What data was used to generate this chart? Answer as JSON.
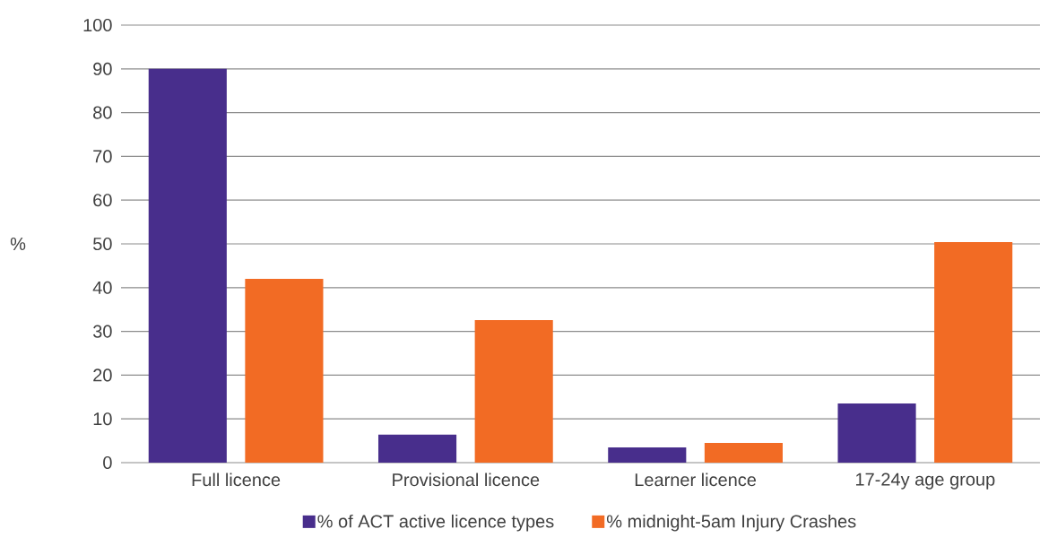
{
  "chart_data": {
    "type": "bar",
    "ylabel": "%",
    "categories": [
      "Full licence",
      "Provisional licence",
      "Learner licence",
      "17-24y age group"
    ],
    "series": [
      {
        "name": "% of ACT active licence types",
        "color": "#482e8c",
        "values": [
          90,
          6.4,
          3.5,
          13.5
        ]
      },
      {
        "name": "% midnight-5am Injury Crashes",
        "color": "#f26b24",
        "values": [
          42,
          32.6,
          4.5,
          50.4
        ]
      }
    ],
    "ylim": [
      0,
      100
    ],
    "yticks": [
      0,
      10,
      20,
      30,
      40,
      50,
      60,
      70,
      80,
      90,
      100
    ],
    "grid": "y",
    "legend": "bottom"
  }
}
